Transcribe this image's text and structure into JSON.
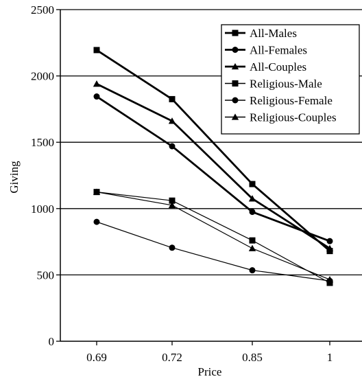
{
  "chart_data": {
    "type": "line",
    "title": "",
    "xlabel": "Price",
    "ylabel": "Giving",
    "categories": [
      "0.69",
      "0.72",
      "0.85",
      "1"
    ],
    "ylim": [
      0,
      2500
    ],
    "yticks": [
      0,
      500,
      1000,
      1500,
      2000,
      2500
    ],
    "grid": "horizontal",
    "legend_position": "top-right",
    "series": [
      {
        "name": "All-Males",
        "marker": "square",
        "weight": "bold",
        "values": [
          2195,
          1825,
          1185,
          680
        ]
      },
      {
        "name": "All-Females",
        "marker": "circle",
        "weight": "bold",
        "values": [
          1845,
          1470,
          975,
          755
        ]
      },
      {
        "name": "All-Couples",
        "marker": "triangle",
        "weight": "bold",
        "values": [
          1940,
          1660,
          1075,
          700
        ]
      },
      {
        "name": "Religious-Male",
        "marker": "square",
        "weight": "thin",
        "values": [
          1125,
          1060,
          760,
          440
        ]
      },
      {
        "name": "Religious-Female",
        "marker": "circle",
        "weight": "thin",
        "values": [
          900,
          705,
          535,
          455
        ]
      },
      {
        "name": "Religious-Couples",
        "marker": "triangle",
        "weight": "thin",
        "values": [
          1125,
          1025,
          700,
          465
        ]
      }
    ]
  }
}
